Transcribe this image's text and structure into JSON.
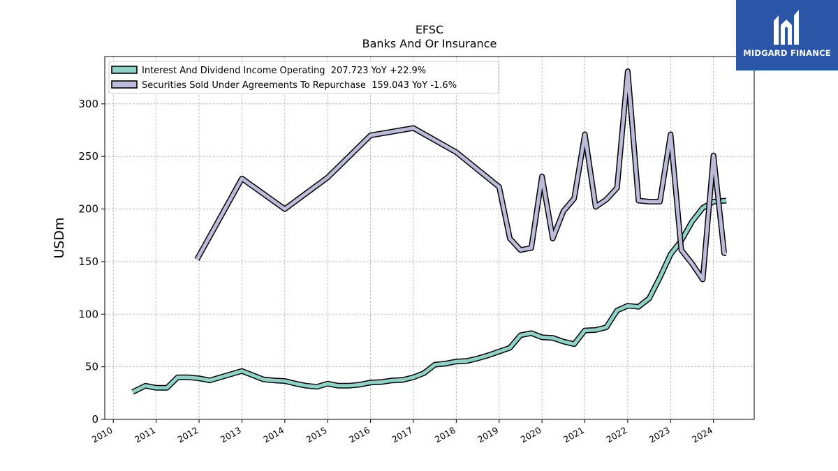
{
  "brand": {
    "name": "MIDGARD FINANCE",
    "background": "#2b55a7"
  },
  "chart_data": {
    "type": "line",
    "title": "EFSC",
    "subtitle": "Banks And Or Insurance",
    "ylabel": "USDm",
    "xlabel": "",
    "xlim": [
      2009.8,
      2024.95
    ],
    "ylim": [
      0,
      345
    ],
    "x_ticks": [
      2010,
      2011,
      2012,
      2013,
      2014,
      2015,
      2016,
      2017,
      2018,
      2019,
      2020,
      2021,
      2022,
      2023,
      2024
    ],
    "x_tick_labels": [
      "2010",
      "2011",
      "2012",
      "2013",
      "2014",
      "2015",
      "2016",
      "2017",
      "2018",
      "2019",
      "2020",
      "2021",
      "2022",
      "2023",
      "2024"
    ],
    "y_ticks": [
      0,
      50,
      100,
      150,
      200,
      250,
      300
    ],
    "y_tick_labels": [
      "0",
      "50",
      "100",
      "150",
      "200",
      "250",
      "300"
    ],
    "grid": true,
    "legend_position": "top-left",
    "series": [
      {
        "name": "Interest And Dividend Income Operating  207.723 YoY +22.9%",
        "color": "#8dd3c7",
        "points": [
          [
            2010.45,
            26
          ],
          [
            2010.75,
            32
          ],
          [
            2011.0,
            30
          ],
          [
            2011.25,
            30
          ],
          [
            2011.5,
            40
          ],
          [
            2011.75,
            40
          ],
          [
            2012.0,
            39
          ],
          [
            2012.25,
            37
          ],
          [
            2012.5,
            40
          ],
          [
            2012.75,
            43
          ],
          [
            2013.0,
            46
          ],
          [
            2013.25,
            42
          ],
          [
            2013.5,
            38
          ],
          [
            2013.75,
            37
          ],
          [
            2014.0,
            36.5
          ],
          [
            2014.25,
            34
          ],
          [
            2014.5,
            32
          ],
          [
            2014.75,
            31
          ],
          [
            2015.0,
            34
          ],
          [
            2015.25,
            32
          ],
          [
            2015.5,
            32
          ],
          [
            2015.75,
            33
          ],
          [
            2016.0,
            35
          ],
          [
            2016.25,
            35.5
          ],
          [
            2016.5,
            37
          ],
          [
            2016.75,
            37.5
          ],
          [
            2017.0,
            40
          ],
          [
            2017.25,
            44
          ],
          [
            2017.5,
            52
          ],
          [
            2017.75,
            53
          ],
          [
            2018.0,
            55
          ],
          [
            2018.25,
            55.5
          ],
          [
            2018.5,
            58
          ],
          [
            2018.75,
            61
          ],
          [
            2019.0,
            64.5
          ],
          [
            2019.25,
            68
          ],
          [
            2019.5,
            80
          ],
          [
            2019.75,
            82
          ],
          [
            2020.0,
            78
          ],
          [
            2020.25,
            77.5
          ],
          [
            2020.5,
            74
          ],
          [
            2020.75,
            71.5
          ],
          [
            2021.0,
            84.5
          ],
          [
            2021.25,
            85
          ],
          [
            2021.5,
            87.5
          ],
          [
            2021.75,
            103.5
          ],
          [
            2022.0,
            108
          ],
          [
            2022.25,
            107
          ],
          [
            2022.5,
            115
          ],
          [
            2022.75,
            135
          ],
          [
            2023.0,
            157
          ],
          [
            2023.25,
            170
          ],
          [
            2023.5,
            188
          ],
          [
            2023.75,
            201
          ],
          [
            2024.0,
            207
          ],
          [
            2024.3,
            208
          ]
        ]
      },
      {
        "name": "Securities Sold Under Agreements To Repurchase  159.043 YoY -1.6%",
        "color": "#bebada",
        "points": [
          [
            2011.95,
            152
          ],
          [
            2013.0,
            229
          ],
          [
            2014.0,
            200
          ],
          [
            2015.0,
            230
          ],
          [
            2016.0,
            270
          ],
          [
            2017.0,
            277
          ],
          [
            2018.0,
            254
          ],
          [
            2019.0,
            221
          ],
          [
            2019.25,
            172
          ],
          [
            2019.5,
            161
          ],
          [
            2019.75,
            163
          ],
          [
            2020.0,
            231
          ],
          [
            2020.25,
            172
          ],
          [
            2020.5,
            198
          ],
          [
            2020.75,
            210
          ],
          [
            2021.0,
            271
          ],
          [
            2021.25,
            202
          ],
          [
            2021.5,
            209
          ],
          [
            2021.75,
            220
          ],
          [
            2022.0,
            331
          ],
          [
            2022.25,
            208
          ],
          [
            2022.5,
            207
          ],
          [
            2022.75,
            207
          ],
          [
            2023.0,
            271
          ],
          [
            2023.25,
            161
          ],
          [
            2023.5,
            148
          ],
          [
            2023.75,
            133
          ],
          [
            2024.0,
            251
          ],
          [
            2024.25,
            158
          ],
          [
            2024.3,
            158
          ]
        ]
      }
    ]
  }
}
